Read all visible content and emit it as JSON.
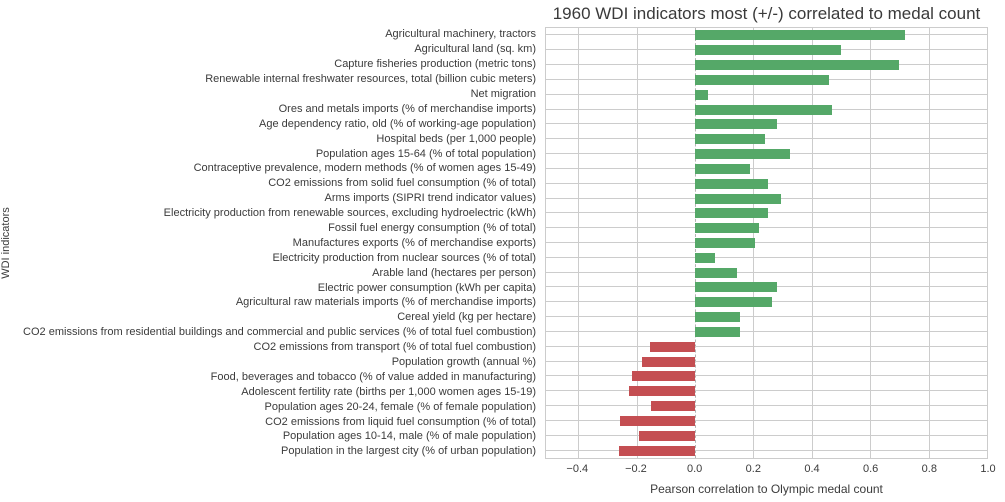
{
  "chart_data": {
    "type": "bar",
    "orientation": "horizontal",
    "title": "1960 WDI indicators most (+/-) correlated to medal count",
    "xlabel": "Pearson correlation to Olympic medal count",
    "ylabel": "WDI indicators",
    "xlim": [
      -0.51,
      1.0
    ],
    "xticks": [
      -0.4,
      -0.2,
      0.0,
      0.2,
      0.4,
      0.6,
      0.8,
      1.0
    ],
    "xtick_labels": [
      "−0.4",
      "−0.2",
      "0.0",
      "0.2",
      "0.4",
      "0.6",
      "0.8",
      "1.0"
    ],
    "grid": true,
    "zero_line_style": "dashed",
    "legend": "none",
    "positive_color": "#55a868",
    "negative_color": "#c44e52",
    "grid_color": "#cccccc",
    "categories": [
      "Agricultural machinery, tractors",
      "Agricultural land (sq. km)",
      "Capture fisheries production (metric tons)",
      "Renewable internal freshwater resources, total (billion cubic meters)",
      "Net migration",
      "Ores and metals imports (% of merchandise imports)",
      "Age dependency ratio, old (% of working-age population)",
      "Hospital beds (per 1,000 people)",
      "Population ages 15-64 (% of total population)",
      "Contraceptive prevalence, modern methods (% of women ages 15-49)",
      "CO2 emissions from solid fuel consumption (% of total)",
      "Arms imports (SIPRI trend indicator values)",
      "Electricity production from renewable sources, excluding hydroelectric (kWh)",
      "Fossil fuel energy consumption (% of total)",
      "Manufactures exports (% of merchandise exports)",
      "Electricity production from nuclear sources (% of total)",
      "Arable land (hectares per person)",
      "Electric power consumption (kWh per capita)",
      "Agricultural raw materials imports (% of merchandise imports)",
      "Cereal yield (kg per hectare)",
      "CO2 emissions from residential buildings and commercial and public services (% of total fuel combustion)",
      "CO2 emissions from transport (% of total fuel combustion)",
      "Population growth (annual %)",
      "Food, beverages and tobacco (% of value added in manufacturing)",
      "Adolescent fertility rate (births per 1,000 women ages 15-19)",
      "Population ages 20-24, female (% of female population)",
      "CO2 emissions from liquid fuel consumption (% of total)",
      "Population ages 10-14, male (% of male population)",
      "Population in the largest city (% of urban population)"
    ],
    "values": [
      0.72,
      0.5,
      0.7,
      0.46,
      0.045,
      0.47,
      0.28,
      0.24,
      0.325,
      0.19,
      0.25,
      0.295,
      0.25,
      0.22,
      0.205,
      0.07,
      0.145,
      0.28,
      0.265,
      0.155,
      0.155,
      -0.155,
      -0.18,
      -0.215,
      -0.225,
      -0.15,
      -0.255,
      -0.19,
      -0.26
    ]
  }
}
